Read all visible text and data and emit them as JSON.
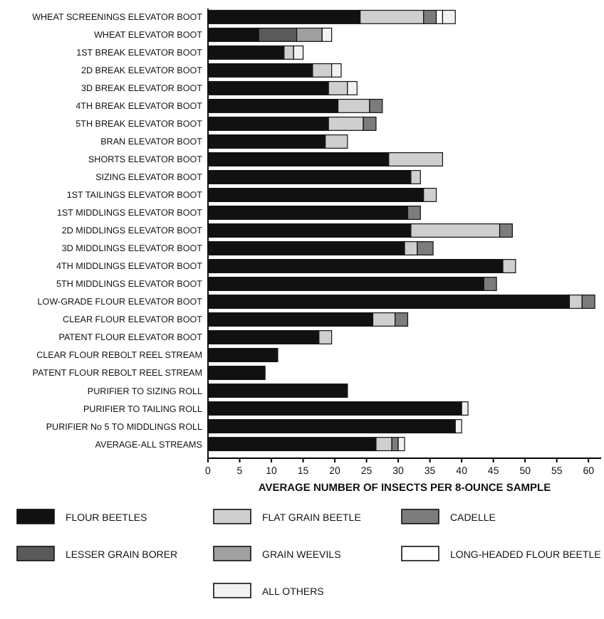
{
  "chart_data": {
    "type": "bar",
    "orientation": "horizontal",
    "stacked": true,
    "xlabel": "AVERAGE NUMBER OF INSECTS PER 8-OUNCE SAMPLE",
    "categories": [
      "WHEAT SCREENINGS ELEVATOR BOOT",
      "WHEAT ELEVATOR BOOT",
      "1ST BREAK ELEVATOR BOOT",
      "2D BREAK ELEVATOR BOOT",
      "3D BREAK ELEVATOR BOOT",
      "4TH BREAK ELEVATOR BOOT",
      "5TH BREAK ELEVATOR BOOT",
      "BRAN ELEVATOR BOOT",
      "SHORTS ELEVATOR BOOT",
      "SIZING ELEVATOR BOOT",
      "1ST TAILINGS ELEVATOR BOOT",
      "1ST MIDDLINGS ELEVATOR BOOT",
      "2D MIDDLINGS ELEVATOR BOOT",
      "3D MIDDLINGS ELEVATOR BOOT",
      "4TH MIDDLINGS ELEVATOR BOOT",
      "5TH MIDDLINGS ELEVATOR BOOT",
      "LOW-GRADE FLOUR ELEVATOR BOOT",
      "CLEAR FLOUR ELEVATOR BOOT",
      "PATENT FLOUR ELEVATOR BOOT",
      "CLEAR FLOUR REBOLT REEL STREAM",
      "PATENT FLOUR REBOLT REEL STREAM",
      "PURIFIER TO SIZING ROLL",
      "PURIFIER TO TAILING ROLL",
      "PURIFIER No 5 TO MIDDLINGS ROLL",
      "AVERAGE-ALL STREAMS"
    ],
    "series": [
      {
        "name": "FLOUR BEETLES",
        "color": "#111111",
        "values": [
          24,
          8,
          12,
          16.5,
          19,
          20.5,
          19,
          18.5,
          28.5,
          32,
          34,
          31.5,
          32,
          31,
          46.5,
          43.5,
          57,
          26,
          17.5,
          11,
          9,
          22,
          40,
          39,
          26.5
        ]
      },
      {
        "name": "LESSER GRAIN BORER",
        "color": "#5a5a5a",
        "values": [
          null,
          6,
          null,
          null,
          null,
          null,
          null,
          null,
          null,
          null,
          null,
          null,
          null,
          null,
          null,
          null,
          null,
          null,
          null,
          null,
          null,
          null,
          null,
          null,
          null
        ]
      },
      {
        "name": "FLAT GRAIN BEETLE",
        "color": "#cfcfcf",
        "values": [
          10,
          null,
          1.5,
          3,
          3,
          5,
          5.5,
          3.5,
          8.5,
          1.5,
          2,
          null,
          14,
          2,
          2,
          null,
          2,
          3.5,
          2,
          null,
          null,
          null,
          null,
          null,
          2.5
        ]
      },
      {
        "name": "GRAIN WEEVILS",
        "color": "#a0a0a0",
        "values": [
          null,
          4,
          null,
          null,
          null,
          null,
          null,
          null,
          null,
          null,
          null,
          null,
          null,
          null,
          null,
          null,
          null,
          null,
          null,
          null,
          null,
          null,
          null,
          null,
          null
        ]
      },
      {
        "name": "CADELLE",
        "color": "#7c7c7c",
        "values": [
          2,
          null,
          null,
          null,
          null,
          2,
          2,
          null,
          null,
          null,
          null,
          2,
          2,
          2.5,
          null,
          2,
          2,
          2,
          null,
          null,
          null,
          null,
          null,
          null,
          1
        ]
      },
      {
        "name": "LONG-HEADED FLOUR BEETLE",
        "color": "#ffffff",
        "values": [
          1,
          null,
          null,
          null,
          null,
          null,
          null,
          null,
          null,
          null,
          null,
          null,
          null,
          null,
          null,
          null,
          null,
          null,
          null,
          null,
          null,
          null,
          null,
          null,
          null
        ]
      },
      {
        "name": "ALL OTHERS",
        "color": "#f2f2f2",
        "values": [
          2,
          1.5,
          1.5,
          1.5,
          1.5,
          null,
          null,
          null,
          null,
          null,
          null,
          null,
          null,
          null,
          null,
          null,
          null,
          null,
          null,
          null,
          null,
          null,
          1,
          1,
          1
        ]
      }
    ],
    "xlim": [
      0,
      62
    ],
    "xticks": [
      0,
      5,
      10,
      15,
      20,
      25,
      30,
      35,
      40,
      45,
      50,
      55,
      60
    ],
    "legend": "bottom"
  }
}
